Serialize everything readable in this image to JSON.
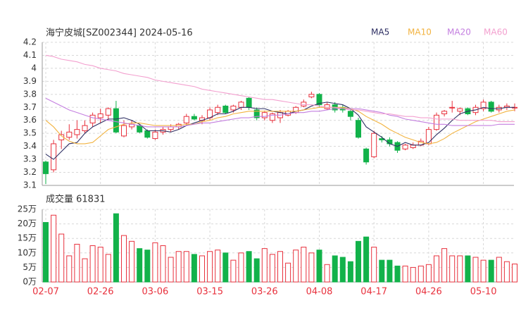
{
  "chart_data": [
    {
      "type": "candlestick",
      "title": "海宁皮城[SZ002344] 2024-05-16",
      "up_color": "#e8313d",
      "down_color": "#12b24a",
      "open": [
        3.28,
        3.22,
        3.45,
        3.47,
        3.49,
        3.52,
        3.58,
        3.62,
        3.64,
        3.69,
        3.48,
        3.55,
        3.56,
        3.52,
        3.46,
        3.51,
        3.53,
        3.55,
        3.58,
        3.63,
        3.6,
        3.62,
        3.66,
        3.71,
        3.68,
        3.7,
        3.77,
        3.68,
        3.62,
        3.6,
        3.62,
        3.64,
        3.66,
        3.71,
        3.78,
        3.8,
        3.69,
        3.72,
        3.7,
        3.67,
        3.6,
        3.38,
        3.32,
        3.46,
        3.45,
        3.43,
        3.38,
        3.39,
        3.41,
        3.42,
        3.53,
        3.65,
        3.7,
        3.67,
        3.69,
        3.66,
        3.69,
        3.74,
        3.68,
        3.7,
        3.7
      ],
      "high": [
        3.29,
        3.45,
        3.52,
        3.57,
        3.6,
        3.6,
        3.66,
        3.69,
        3.7,
        3.75,
        3.6,
        3.6,
        3.57,
        3.53,
        3.53,
        3.55,
        3.57,
        3.58,
        3.65,
        3.65,
        3.64,
        3.7,
        3.72,
        3.72,
        3.72,
        3.75,
        3.78,
        3.7,
        3.67,
        3.66,
        3.68,
        3.68,
        3.71,
        3.76,
        3.82,
        3.81,
        3.74,
        3.74,
        3.72,
        3.69,
        3.62,
        3.39,
        3.52,
        3.48,
        3.47,
        3.44,
        3.42,
        3.43,
        3.46,
        3.55,
        3.66,
        3.68,
        3.75,
        3.7,
        3.7,
        3.72,
        3.76,
        3.75,
        3.72,
        3.73,
        3.73
      ],
      "low": [
        3.11,
        3.2,
        3.38,
        3.45,
        3.46,
        3.5,
        3.55,
        3.58,
        3.6,
        3.5,
        3.47,
        3.53,
        3.5,
        3.46,
        3.45,
        3.49,
        3.51,
        3.53,
        3.56,
        3.6,
        3.57,
        3.6,
        3.64,
        3.65,
        3.66,
        3.68,
        3.68,
        3.6,
        3.6,
        3.58,
        3.58,
        3.63,
        3.65,
        3.7,
        3.77,
        3.7,
        3.68,
        3.66,
        3.66,
        3.6,
        3.46,
        3.26,
        3.31,
        3.43,
        3.4,
        3.35,
        3.37,
        3.38,
        3.4,
        3.41,
        3.52,
        3.63,
        3.66,
        3.64,
        3.64,
        3.64,
        3.67,
        3.66,
        3.66,
        3.68,
        3.67
      ],
      "close": [
        3.19,
        3.42,
        3.49,
        3.51,
        3.53,
        3.56,
        3.64,
        3.65,
        3.69,
        3.51,
        3.56,
        3.57,
        3.51,
        3.47,
        3.51,
        3.53,
        3.55,
        3.57,
        3.63,
        3.61,
        3.62,
        3.68,
        3.7,
        3.66,
        3.71,
        3.74,
        3.7,
        3.62,
        3.66,
        3.65,
        3.66,
        3.67,
        3.7,
        3.74,
        3.8,
        3.72,
        3.72,
        3.68,
        3.68,
        3.63,
        3.47,
        3.28,
        3.5,
        3.45,
        3.42,
        3.37,
        3.41,
        3.41,
        3.44,
        3.53,
        3.64,
        3.67,
        3.7,
        3.69,
        3.65,
        3.7,
        3.74,
        3.67,
        3.7,
        3.71,
        3.7
      ],
      "series": [
        {
          "name": "MA5",
          "color": "#2e2f63",
          "values": [
            3.34,
            3.3,
            3.36,
            3.42,
            3.43,
            3.5,
            3.55,
            3.58,
            3.61,
            3.61,
            3.62,
            3.6,
            3.57,
            3.52,
            3.52,
            3.52,
            3.51,
            3.53,
            3.56,
            3.58,
            3.6,
            3.62,
            3.65,
            3.65,
            3.67,
            3.7,
            3.7,
            3.69,
            3.69,
            3.67,
            3.66,
            3.65,
            3.67,
            3.68,
            3.71,
            3.73,
            3.74,
            3.73,
            3.72,
            3.69,
            3.64,
            3.55,
            3.51,
            3.47,
            3.42,
            3.4,
            3.43,
            3.41,
            3.41,
            3.43,
            3.49,
            3.54,
            3.6,
            3.65,
            3.67,
            3.68,
            3.7,
            3.69,
            3.69,
            3.7,
            3.7
          ]
        },
        {
          "name": "MA10",
          "color": "#f2b340",
          "values": [
            3.6,
            3.55,
            3.48,
            3.44,
            3.42,
            3.42,
            3.43,
            3.48,
            3.53,
            3.55,
            3.57,
            3.58,
            3.58,
            3.57,
            3.56,
            3.56,
            3.56,
            3.56,
            3.57,
            3.57,
            3.59,
            3.6,
            3.62,
            3.63,
            3.65,
            3.66,
            3.67,
            3.67,
            3.67,
            3.67,
            3.67,
            3.67,
            3.67,
            3.68,
            3.69,
            3.7,
            3.7,
            3.7,
            3.7,
            3.69,
            3.67,
            3.63,
            3.6,
            3.57,
            3.53,
            3.5,
            3.47,
            3.45,
            3.43,
            3.42,
            3.43,
            3.46,
            3.5,
            3.53,
            3.56,
            3.59,
            3.61,
            3.63,
            3.65,
            3.67,
            3.68
          ]
        },
        {
          "name": "MA20",
          "color": "#c47fe0",
          "values": [
            3.77,
            3.74,
            3.71,
            3.68,
            3.66,
            3.64,
            3.62,
            3.61,
            3.6,
            3.59,
            3.58,
            3.57,
            3.56,
            3.55,
            3.55,
            3.55,
            3.55,
            3.55,
            3.56,
            3.57,
            3.58,
            3.58,
            3.59,
            3.6,
            3.61,
            3.62,
            3.62,
            3.63,
            3.63,
            3.64,
            3.64,
            3.65,
            3.66,
            3.66,
            3.67,
            3.67,
            3.68,
            3.69,
            3.69,
            3.69,
            3.69,
            3.68,
            3.67,
            3.66,
            3.64,
            3.63,
            3.61,
            3.6,
            3.59,
            3.58,
            3.57,
            3.57,
            3.56,
            3.56,
            3.56,
            3.56,
            3.56,
            3.56,
            3.57,
            3.57,
            3.57
          ]
        },
        {
          "name": "MA60",
          "color": "#f3a0cf",
          "values": [
            4.1,
            4.09,
            4.07,
            4.06,
            4.05,
            4.03,
            4.02,
            4.0,
            3.99,
            3.98,
            3.96,
            3.95,
            3.94,
            3.93,
            3.91,
            3.9,
            3.89,
            3.88,
            3.87,
            3.86,
            3.84,
            3.83,
            3.82,
            3.81,
            3.8,
            3.79,
            3.78,
            3.77,
            3.76,
            3.76,
            3.75,
            3.74,
            3.73,
            3.72,
            3.72,
            3.71,
            3.7,
            3.7,
            3.69,
            3.68,
            3.68,
            3.67,
            3.66,
            3.65,
            3.65,
            3.64,
            3.63,
            3.63,
            3.62,
            3.62,
            3.61,
            3.61,
            3.61,
            3.6,
            3.6,
            3.6,
            3.6,
            3.6,
            3.59,
            3.59,
            3.59
          ]
        }
      ],
      "ylim": [
        3.1,
        4.2
      ],
      "yticks": [
        3.1,
        3.2,
        3.3,
        3.4,
        3.5,
        3.6,
        3.7,
        3.8,
        3.9,
        4,
        4.1,
        4.2
      ],
      "grid": true
    },
    {
      "type": "bar",
      "title": "成交量 61831",
      "categories": [
        "02-07",
        null,
        null,
        null,
        null,
        null,
        null,
        "02-26",
        null,
        null,
        null,
        null,
        null,
        null,
        "03-06",
        null,
        null,
        null,
        null,
        null,
        null,
        "03-15",
        null,
        null,
        null,
        null,
        null,
        null,
        "03-26",
        null,
        null,
        null,
        null,
        null,
        null,
        "04-08",
        null,
        null,
        null,
        null,
        null,
        null,
        "04-17",
        null,
        null,
        null,
        null,
        null,
        null,
        "04-26",
        null,
        null,
        null,
        null,
        null,
        null,
        "05-10",
        null,
        null,
        null,
        null
      ],
      "values": [
        20.5,
        23,
        16.5,
        9,
        13,
        8,
        12.5,
        12,
        9.5,
        23.5,
        16,
        14,
        11.5,
        11,
        13.5,
        12.5,
        8.5,
        10.5,
        10.5,
        9.5,
        9,
        10.5,
        11,
        10,
        7.5,
        10,
        10.5,
        8,
        11.5,
        9.5,
        10.5,
        6.5,
        11,
        12,
        10,
        11,
        6,
        9,
        8.5,
        7,
        14,
        15.5,
        12,
        7.5,
        7.5,
        5.5,
        5.5,
        5,
        5.5,
        6,
        9,
        11.5,
        9,
        9,
        9,
        8.5,
        7.5,
        7.5,
        8.5,
        7,
        6.2
      ],
      "ylim": [
        0,
        25
      ],
      "yticks": [
        {
          "value": 0,
          "label": "0万"
        },
        {
          "value": 5,
          "label": "5万"
        },
        {
          "value": 10,
          "label": "10万"
        },
        {
          "value": 15,
          "label": "15万"
        },
        {
          "value": 20,
          "label": "20万"
        },
        {
          "value": 25,
          "label": "25万"
        }
      ],
      "grid": true
    }
  ]
}
